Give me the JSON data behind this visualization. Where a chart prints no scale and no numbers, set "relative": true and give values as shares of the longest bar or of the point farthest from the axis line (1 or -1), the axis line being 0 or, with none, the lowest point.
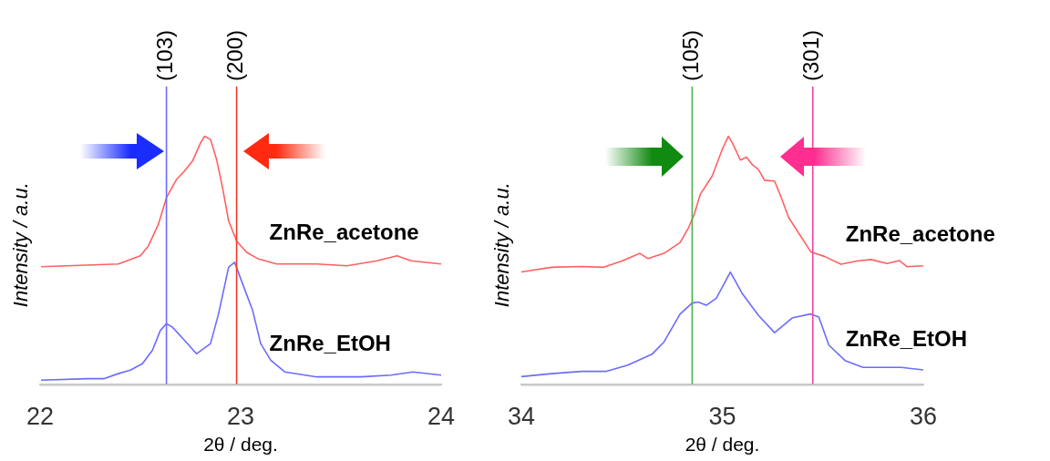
{
  "chart_data": [
    {
      "type": "line",
      "xlabel": "2θ / deg.",
      "ylabel": "Intensity / a.u.",
      "relative": true,
      "marker": "none",
      "grid": false,
      "xlim": [
        22,
        24
      ],
      "xticks": [
        22,
        23,
        24
      ],
      "ref_lines": [
        {
          "axis": "x",
          "value": 22.63,
          "color": "#6b6bff"
        },
        {
          "axis": "x",
          "value": 22.98,
          "color": "#f03a2a"
        }
      ],
      "annotations": [
        "(103)",
        "(200)"
      ],
      "series": [
        {
          "name": "ZnRe_acetone",
          "color": "#ff6060",
          "x": [
            22.005,
            22.39,
            22.5,
            22.54,
            22.59,
            22.63,
            22.68,
            22.72,
            22.76,
            22.8,
            22.82,
            22.85,
            22.88,
            22.91,
            22.94,
            22.98,
            23.03,
            23.09,
            23.18,
            23.38,
            23.53,
            23.68,
            23.78,
            23.85,
            24.0
          ],
          "values": [
            0.475,
            0.486,
            0.519,
            0.559,
            0.646,
            0.753,
            0.826,
            0.86,
            0.9,
            0.973,
            1.0,
            0.987,
            0.907,
            0.793,
            0.66,
            0.579,
            0.533,
            0.506,
            0.486,
            0.486,
            0.479,
            0.499,
            0.519,
            0.499,
            0.486
          ]
        },
        {
          "name": "ZnRe_EtOH",
          "color": "#6b6bff",
          "x": [
            22.005,
            22.24,
            22.32,
            22.39,
            22.45,
            22.51,
            22.56,
            22.6,
            22.63,
            22.66,
            22.72,
            22.78,
            22.85,
            22.89,
            22.94,
            22.97,
            23.01,
            23.06,
            23.1,
            23.15,
            23.22,
            23.38,
            23.6,
            23.75,
            23.86,
            24.0
          ],
          "values": [
            0.019,
            0.025,
            0.025,
            0.045,
            0.059,
            0.085,
            0.139,
            0.219,
            0.246,
            0.232,
            0.179,
            0.125,
            0.166,
            0.286,
            0.473,
            0.493,
            0.406,
            0.299,
            0.166,
            0.099,
            0.052,
            0.032,
            0.032,
            0.039,
            0.052,
            0.039
          ]
        }
      ]
    },
    {
      "type": "line",
      "xlabel": "2θ / deg.",
      "ylabel": "Intensity / a.u.",
      "relative": true,
      "marker": "none",
      "grid": false,
      "xlim": [
        34,
        36
      ],
      "xticks": [
        34,
        35,
        36
      ],
      "ref_lines": [
        {
          "axis": "x",
          "value": 34.85,
          "color": "#4caf50"
        },
        {
          "axis": "x",
          "value": 35.45,
          "color": "#f040a8"
        }
      ],
      "annotations": [
        "(105)",
        "(301)"
      ],
      "series": [
        {
          "name": "ZnRe_acetone",
          "color": "#ff6060",
          "x": [
            34.0,
            34.15,
            34.3,
            34.41,
            34.5,
            34.59,
            34.63,
            34.71,
            34.79,
            34.83,
            34.86,
            34.89,
            34.95,
            35.0,
            35.03,
            35.05,
            35.09,
            35.12,
            35.15,
            35.18,
            35.21,
            35.26,
            35.29,
            35.33,
            35.39,
            35.44,
            35.51,
            35.59,
            35.67,
            35.74,
            35.82,
            35.88,
            35.92,
            36.0
          ],
          "values": [
            0.454,
            0.473,
            0.476,
            0.473,
            0.498,
            0.529,
            0.508,
            0.529,
            0.573,
            0.629,
            0.685,
            0.766,
            0.841,
            0.948,
            1.0,
            0.973,
            0.904,
            0.916,
            0.885,
            0.866,
            0.823,
            0.82,
            0.76,
            0.673,
            0.598,
            0.535,
            0.516,
            0.485,
            0.498,
            0.504,
            0.488,
            0.5,
            0.475,
            0.479
          ]
        },
        {
          "name": "ZnRe_EtOH",
          "color": "#6b6bff",
          "x": [
            34.0,
            34.15,
            34.3,
            34.42,
            34.53,
            34.65,
            34.71,
            34.79,
            34.85,
            34.88,
            34.92,
            34.97,
            35.04,
            35.1,
            35.18,
            35.26,
            35.35,
            35.44,
            35.48,
            35.53,
            35.61,
            35.7,
            35.89,
            36.0
          ],
          "values": [
            0.033,
            0.045,
            0.054,
            0.054,
            0.079,
            0.123,
            0.173,
            0.285,
            0.329,
            0.333,
            0.32,
            0.348,
            0.454,
            0.366,
            0.279,
            0.21,
            0.27,
            0.285,
            0.273,
            0.16,
            0.098,
            0.07,
            0.07,
            0.06
          ]
        }
      ]
    }
  ]
}
